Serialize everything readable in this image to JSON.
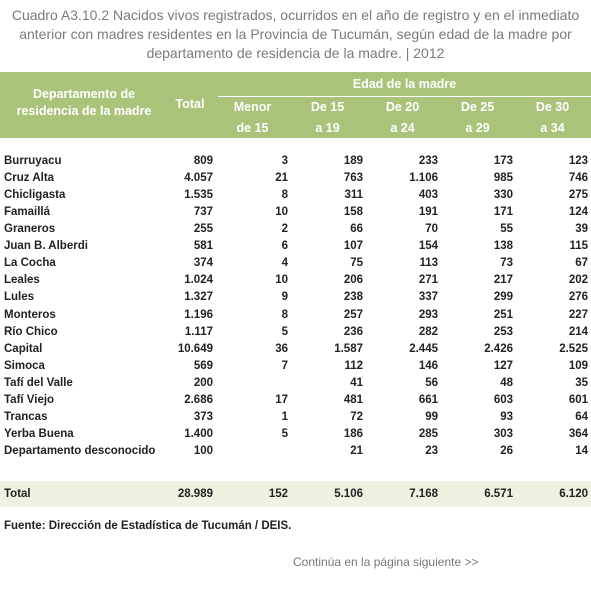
{
  "title": "Cuadro A3.10.2 Nacidos vivos registrados, ocurridos en el año de registro y en el inmediato anterior con madres residentes en la Provincia de Tucumán, según edad de la madre por departamento de residencia de la madre. | 2012",
  "table": {
    "header": {
      "department": "Departamento de residencia de la madre",
      "total": "Total",
      "age_group": "Edad de la madre",
      "ages": [
        "Menor de 15",
        "De 15 a 19",
        "De 20 a 24",
        "De 25 a 29",
        "De 30 a 34"
      ]
    },
    "rows": [
      [
        "Burruyacu",
        "809",
        "3",
        "189",
        "233",
        "173",
        "123"
      ],
      [
        "Cruz Alta",
        "4.057",
        "21",
        "763",
        "1.106",
        "985",
        "746"
      ],
      [
        "Chicligasta",
        "1.535",
        "8",
        "311",
        "403",
        "330",
        "275"
      ],
      [
        "Famaillá",
        "737",
        "10",
        "158",
        "191",
        "171",
        "124"
      ],
      [
        "Graneros",
        "255",
        "2",
        "66",
        "70",
        "55",
        "39"
      ],
      [
        "Juan B. Alberdi",
        "581",
        "6",
        "107",
        "154",
        "138",
        "115"
      ],
      [
        "La Cocha",
        "374",
        "4",
        "75",
        "113",
        "73",
        "67"
      ],
      [
        "Leales",
        "1.024",
        "10",
        "206",
        "271",
        "217",
        "202"
      ],
      [
        "Lules",
        "1.327",
        "9",
        "238",
        "337",
        "299",
        "276"
      ],
      [
        "Monteros",
        "1.196",
        "8",
        "257",
        "293",
        "251",
        "227"
      ],
      [
        "Río Chico",
        "1.117",
        "5",
        "236",
        "282",
        "253",
        "214"
      ],
      [
        "Capital",
        "10.649",
        "36",
        "1.587",
        "2.445",
        "2.426",
        "2.525"
      ],
      [
        "Simoca",
        "569",
        "7",
        "112",
        "146",
        "127",
        "109"
      ],
      [
        "Tafí del Valle",
        "200",
        null,
        "41",
        "56",
        "48",
        "35"
      ],
      [
        "Tafí Viejo",
        "2.686",
        "17",
        "481",
        "661",
        "603",
        "601"
      ],
      [
        "Trancas",
        "373",
        "1",
        "72",
        "99",
        "93",
        "64"
      ],
      [
        "Yerba Buena",
        "1.400",
        "5",
        "186",
        "285",
        "303",
        "364"
      ],
      [
        "Departamento desconocido",
        "100",
        null,
        "21",
        "23",
        "26",
        "14"
      ]
    ],
    "total": [
      "Total",
      "28.989",
      "152",
      "5.106",
      "7.168",
      "6.571",
      "6.120"
    ]
  },
  "source": "Fuente: Dirección de Estadística de Tucumán / DEIS.",
  "continues": "Continúa en la página siguiente >>"
}
